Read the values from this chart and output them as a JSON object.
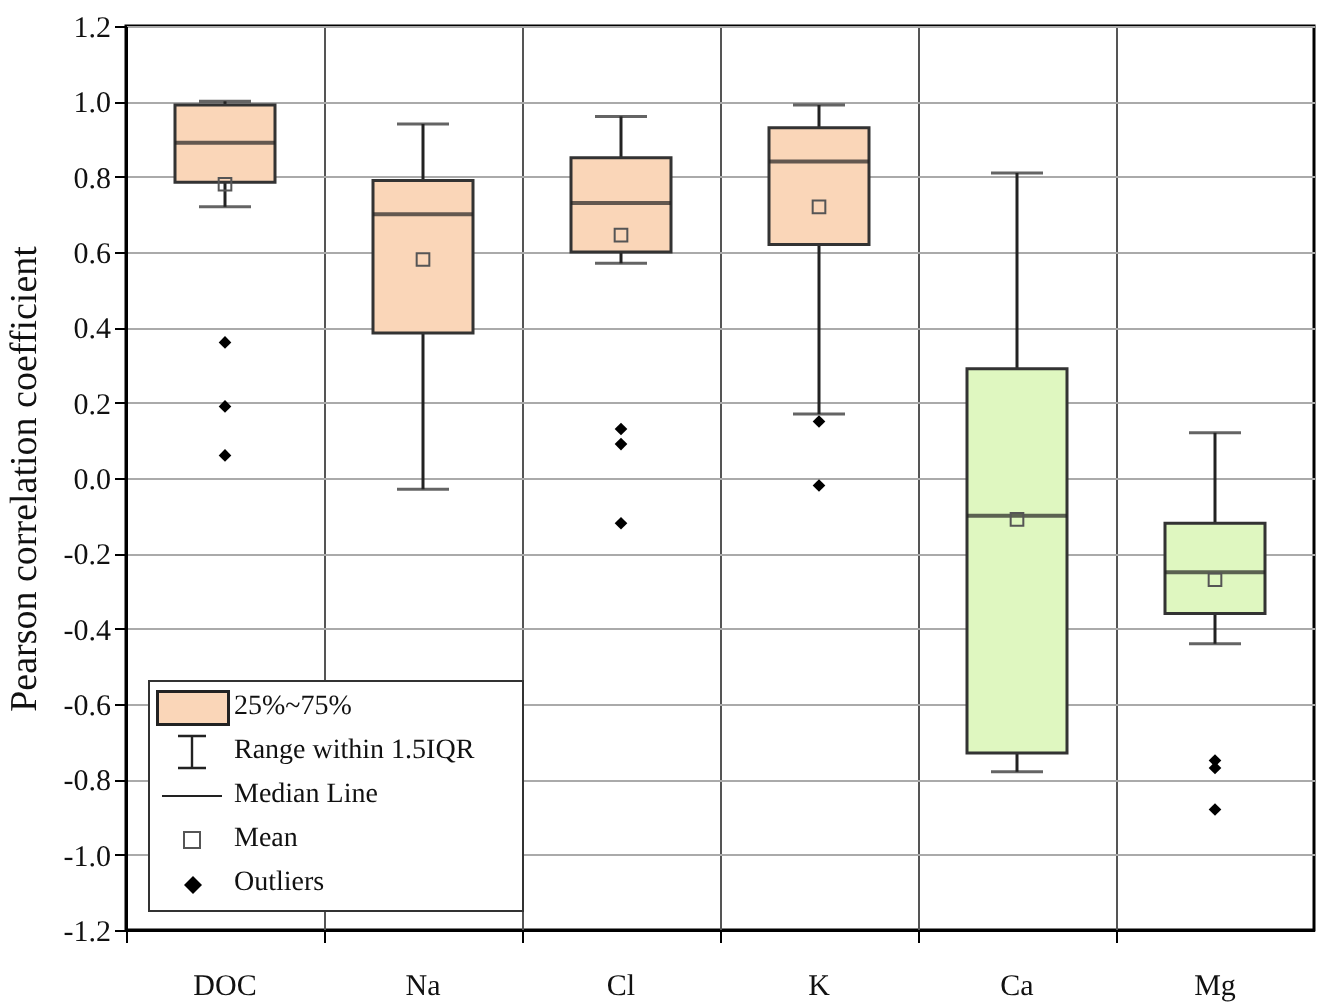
{
  "chart_data": {
    "type": "box",
    "ylabel": "Pearson correlation coefficient",
    "categories": [
      "DOC",
      "Na",
      "Cl",
      "K",
      "Ca",
      "Mg"
    ],
    "colors": [
      "#fad6b8",
      "#fad6b8",
      "#fad6b8",
      "#fad6b8",
      "#dff7c0",
      "#dff7c0"
    ],
    "boxes": [
      {
        "low": 0.72,
        "q1": 0.785,
        "median": 0.89,
        "q3": 0.99,
        "high": 1.0,
        "mean": 0.78,
        "outliers": [
          0.36,
          0.19,
          0.06
        ]
      },
      {
        "low": -0.03,
        "q1": 0.385,
        "median": 0.7,
        "q3": 0.79,
        "high": 0.94,
        "mean": 0.58
      },
      {
        "low": 0.57,
        "q1": 0.6,
        "median": 0.73,
        "q3": 0.85,
        "high": 0.96,
        "mean": 0.645,
        "outliers": [
          0.13,
          0.09,
          -0.12
        ]
      },
      {
        "low": 0.17,
        "q1": 0.62,
        "median": 0.84,
        "q3": 0.93,
        "high": 0.99,
        "mean": 0.72,
        "outliers": [
          0.15,
          -0.02
        ]
      },
      {
        "low": -0.78,
        "q1": -0.73,
        "median": -0.1,
        "q3": 0.29,
        "high": 0.81,
        "mean": -0.11
      },
      {
        "low": -0.44,
        "q1": -0.36,
        "median": -0.25,
        "q3": -0.12,
        "high": 0.12,
        "mean": -0.27,
        "outliers": [
          -0.75,
          -0.77,
          -0.88
        ]
      }
    ],
    "ylim": [
      -1.2,
      1.2
    ],
    "yticks": [
      -1.2,
      {
        "value": -1,
        "label": "-1.0"
      },
      -0.8,
      -0.6,
      -0.4,
      -0.2,
      {
        "value": 0,
        "label": "0.0"
      },
      0.2,
      0.4,
      0.6,
      0.8,
      {
        "value": 1,
        "label": "1.0"
      },
      1.2
    ],
    "grid": true,
    "annotations": [
      "25%~75%",
      "Range within 1.5IQR",
      "Median Line",
      "Mean",
      "Outliers"
    ]
  }
}
